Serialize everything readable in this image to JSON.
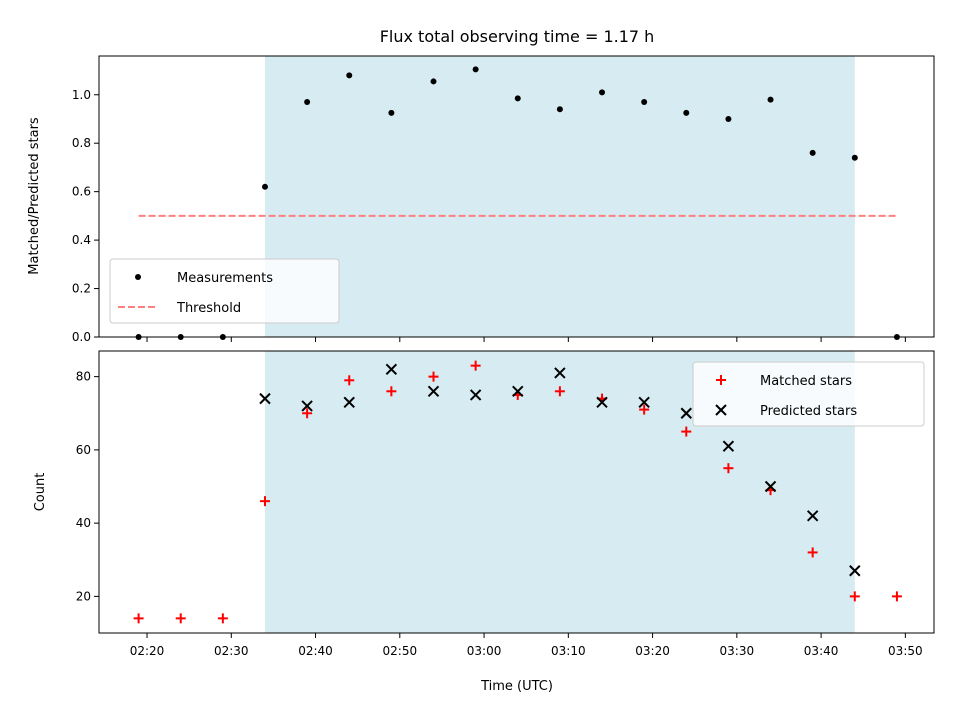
{
  "chart_data": [
    {
      "type": "scatter",
      "title": "Flux total observing time = 1.17 h",
      "ylabel": "Matched/Predicted stars",
      "ylim": [
        0,
        1.16
      ],
      "yticks": [
        "0.0",
        "0.2",
        "0.4",
        "0.6",
        "0.8",
        "1.0"
      ],
      "shaded_span": [
        "02:34",
        "03:44"
      ],
      "series": [
        {
          "name": "Measurements",
          "marker": "dot",
          "color": "#000000",
          "x": [
            "02:19",
            "02:24",
            "02:29",
            "02:34",
            "02:39",
            "02:44",
            "02:49",
            "02:54",
            "02:59",
            "03:04",
            "03:09",
            "03:14",
            "03:19",
            "03:24",
            "03:29",
            "03:34",
            "03:39",
            "03:44",
            "03:49"
          ],
          "y": [
            0.0,
            0.0,
            0.0,
            0.62,
            0.97,
            1.08,
            0.925,
            1.055,
            1.105,
            0.985,
            0.94,
            1.01,
            0.97,
            0.925,
            0.9,
            0.98,
            0.76,
            0.74,
            0.0
          ]
        },
        {
          "name": "Threshold",
          "marker": "dashed-line",
          "color": "#ff8080",
          "x": [
            "02:19",
            "03:49"
          ],
          "y": [
            0.5,
            0.5
          ]
        }
      ],
      "legend": "lower-left"
    },
    {
      "type": "scatter",
      "xlabel": "Time (UTC)",
      "ylabel": "Count",
      "ylim": [
        10,
        87
      ],
      "yticks": [
        "20",
        "40",
        "60",
        "80"
      ],
      "xticks": [
        "02:20",
        "02:30",
        "02:40",
        "02:50",
        "03:00",
        "03:10",
        "03:20",
        "03:30",
        "03:40",
        "03:50"
      ],
      "shaded_span": [
        "02:34",
        "03:44"
      ],
      "series": [
        {
          "name": "Matched stars",
          "marker": "plus",
          "color": "#ff0000",
          "x": [
            "02:19",
            "02:24",
            "02:29",
            "02:34",
            "02:39",
            "02:44",
            "02:49",
            "02:54",
            "02:59",
            "03:04",
            "03:09",
            "03:14",
            "03:19",
            "03:24",
            "03:29",
            "03:34",
            "03:39",
            "03:44",
            "03:49"
          ],
          "y": [
            14,
            14,
            14,
            46,
            70,
            79,
            76,
            80,
            83,
            75,
            76,
            74,
            71,
            65,
            55,
            49,
            32,
            20,
            20
          ]
        },
        {
          "name": "Predicted stars",
          "marker": "x",
          "color": "#000000",
          "x": [
            "02:34",
            "02:39",
            "02:44",
            "02:49",
            "02:54",
            "02:59",
            "03:04",
            "03:09",
            "03:14",
            "03:19",
            "03:24",
            "03:29",
            "03:34",
            "03:39",
            "03:44"
          ],
          "y": [
            74,
            72,
            73,
            82,
            76,
            75,
            76,
            81,
            73,
            73,
            70,
            61,
            50,
            42,
            27
          ]
        }
      ],
      "legend": "upper-right"
    }
  ],
  "colors": {
    "span": "#add8e6",
    "span_opacity": 0.5,
    "threshold": "#ff8080",
    "matched": "#ff0000",
    "predicted": "#000000"
  }
}
